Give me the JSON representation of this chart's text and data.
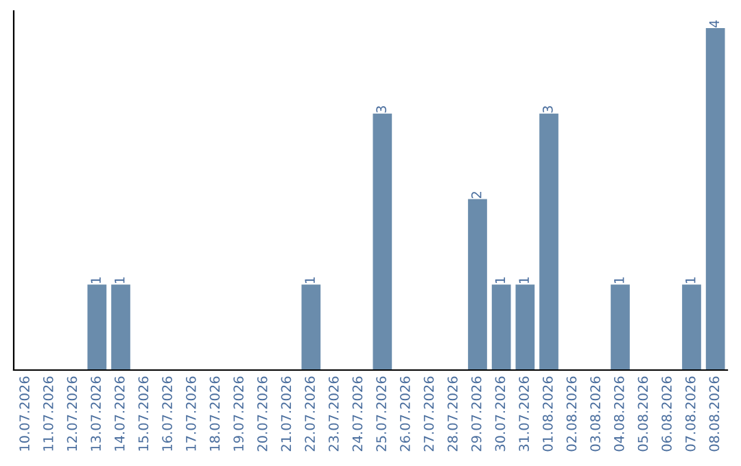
{
  "chart_data": {
    "type": "bar",
    "categories": [
      "10.07.2026",
      "11.07.2026",
      "12.07.2026",
      "13.07.2026",
      "14.07.2026",
      "15.07.2026",
      "16.07.2026",
      "17.07.2026",
      "18.07.2026",
      "19.07.2026",
      "20.07.2026",
      "21.07.2026",
      "22.07.2026",
      "23.07.2026",
      "24.07.2026",
      "25.07.2026",
      "26.07.2026",
      "27.07.2026",
      "28.07.2026",
      "29.07.2026",
      "30.07.2026",
      "31.07.2026",
      "01.08.2026",
      "02.08.2026",
      "03.08.2026",
      "04.08.2026",
      "05.08.2026",
      "06.08.2026",
      "07.08.2026",
      "08.08.2026"
    ],
    "values": [
      0,
      0,
      0,
      1,
      1,
      0,
      0,
      0,
      0,
      0,
      0,
      0,
      1,
      0,
      0,
      3,
      0,
      0,
      0,
      2,
      1,
      1,
      3,
      0,
      0,
      1,
      0,
      0,
      1,
      4
    ],
    "value_labels": [
      null,
      null,
      null,
      "1",
      "1",
      null,
      null,
      null,
      null,
      null,
      null,
      null,
      "1",
      null,
      null,
      "3",
      null,
      null,
      null,
      "2",
      "1",
      "1",
      "3",
      null,
      null,
      "1",
      null,
      null,
      "1",
      "4"
    ],
    "color": "#6a8cac",
    "tick_labels": "x",
    "grid": false,
    "legend": false
  }
}
